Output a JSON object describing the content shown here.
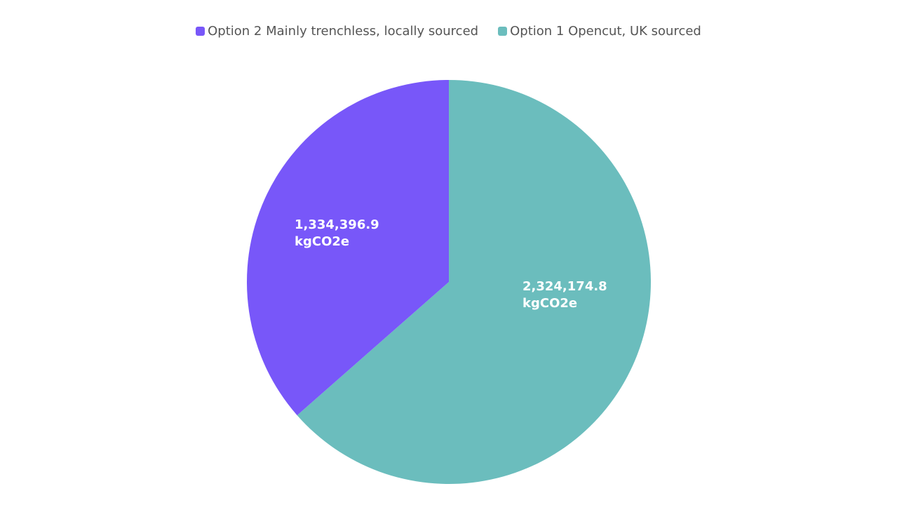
{
  "chart_data": {
    "type": "pie",
    "legend_position": "top-center",
    "series": [
      {
        "name": "Option 2 Mainly trenchless, locally sourced",
        "value": 1334396.9,
        "label_lines": [
          "1,334,396.9",
          "kgCO2e"
        ],
        "color": "#7857f9"
      },
      {
        "name": "Option 1 Opencut, UK sourced",
        "value": 2324174.8,
        "label_lines": [
          "2,324,174.8",
          "kgCO2e"
        ],
        "color": "#6bbdbd"
      }
    ]
  }
}
